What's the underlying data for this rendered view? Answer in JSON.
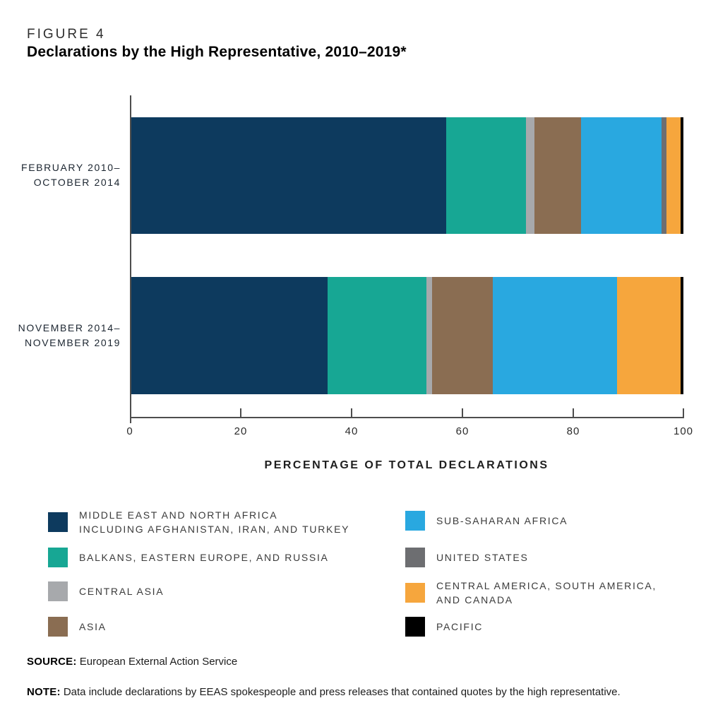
{
  "header": {
    "figure_label": "FIGURE 4",
    "title": "Declarations by the High Representative, 2010–2019*"
  },
  "chart_data": {
    "type": "bar",
    "subtype": "horizontal-stacked-percentage",
    "xlabel": "PERCENTAGE OF TOTAL DECLARATIONS",
    "xlim": [
      0,
      100
    ],
    "x_ticks": [
      "0",
      "20",
      "40",
      "60",
      "80",
      "100"
    ],
    "grid": false,
    "rows": [
      {
        "label_lines": [
          "FEBRUARY 2010–",
          "OCTOBER 2014"
        ]
      },
      {
        "label_lines": [
          "NOVEMBER 2014–",
          "NOVEMBER 2019"
        ]
      }
    ],
    "series": [
      {
        "id": "mena",
        "name": "Middle East and North Africa including Afghanistan, Iran, and Turkey",
        "color": "#0d3a5e",
        "values": [
          57,
          35.5
        ]
      },
      {
        "id": "balkans",
        "name": "Balkans, Eastern Europe, and Russia",
        "color": "#17a794",
        "values": [
          14.5,
          18
        ]
      },
      {
        "id": "central-asia",
        "name": "Central Asia",
        "color": "#a7a9ac",
        "values": [
          1.5,
          1
        ]
      },
      {
        "id": "asia",
        "name": "Asia",
        "color": "#8a6d52",
        "values": [
          8.5,
          11
        ]
      },
      {
        "id": "sub-saharan-africa",
        "name": "Sub-Saharan Africa",
        "color": "#29a8e0",
        "values": [
          14.5,
          22.5
        ]
      },
      {
        "id": "united-states",
        "name": "United States",
        "color": "#6d6e71",
        "values": [
          1,
          0
        ]
      },
      {
        "id": "central-south-america-canada",
        "name": "Central America, South America, and Canada",
        "color": "#f6a63d",
        "values": [
          2.5,
          11.5
        ]
      },
      {
        "id": "pacific",
        "name": "Pacific",
        "color": "#000000",
        "values": [
          0.5,
          0.5
        ]
      }
    ]
  },
  "legend": {
    "items": [
      {
        "color": "#0d3a5e",
        "lines": [
          "MIDDLE EAST AND NORTH AFRICA",
          "INCLUDING AFGHANISTAN, IRAN, AND TURKEY"
        ]
      },
      {
        "color": "#17a794",
        "lines": [
          "BALKANS, EASTERN EUROPE, AND RUSSIA"
        ]
      },
      {
        "color": "#a7a9ac",
        "lines": [
          "CENTRAL ASIA"
        ]
      },
      {
        "color": "#8a6d52",
        "lines": [
          "ASIA"
        ]
      },
      {
        "color": "#29a8e0",
        "lines": [
          "SUB-SAHARAN AFRICA"
        ]
      },
      {
        "color": "#6d6e71",
        "lines": [
          "UNITED STATES"
        ]
      },
      {
        "color": "#f6a63d",
        "lines": [
          "CENTRAL AMERICA, SOUTH AMERICA,",
          "AND CANADA"
        ]
      },
      {
        "color": "#000000",
        "lines": [
          "PACIFIC"
        ]
      }
    ]
  },
  "footer": {
    "source_label": "SOURCE:",
    "source_text": "European External Action Service",
    "note_label": "NOTE:",
    "note_text": "Data include declarations by EEAS spokespeople and press releases that contained quotes by the high representative."
  }
}
